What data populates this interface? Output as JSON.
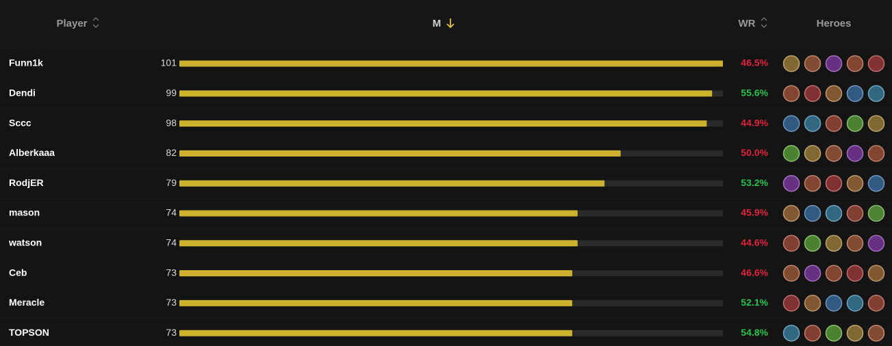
{
  "table": {
    "headers": {
      "player": "Player",
      "matches": "M",
      "winrate": "WR",
      "heroes": "Heroes"
    },
    "rows": [
      {
        "player": "Funn1k",
        "matches": 101,
        "winrate": "46.5%",
        "wr_color": "#e0243a"
      },
      {
        "player": "Dendi",
        "matches": 99,
        "winrate": "55.6%",
        "wr_color": "#27c24c"
      },
      {
        "player": "Sccc",
        "matches": 98,
        "winrate": "44.9%",
        "wr_color": "#e0243a"
      },
      {
        "player": "Alberkaaa",
        "matches": 82,
        "winrate": "50.0%",
        "wr_color": "#e0243a"
      },
      {
        "player": "RodjER",
        "matches": 79,
        "winrate": "53.2%",
        "wr_color": "#27c24c"
      },
      {
        "player": "mason",
        "matches": 74,
        "winrate": "45.9%",
        "wr_color": "#e0243a"
      },
      {
        "player": "watson",
        "matches": 74,
        "winrate": "44.6%",
        "wr_color": "#e0243a"
      },
      {
        "player": "Ceb",
        "matches": 73,
        "winrate": "46.6%",
        "wr_color": "#e0243a"
      },
      {
        "player": "Meracle",
        "matches": 73,
        "winrate": "52.1%",
        "wr_color": "#27c24c"
      },
      {
        "player": "TOPSON",
        "matches": 73,
        "winrate": "54.8%",
        "wr_color": "#27c24c"
      }
    ],
    "bar_color": "#cdb22e"
  }
}
